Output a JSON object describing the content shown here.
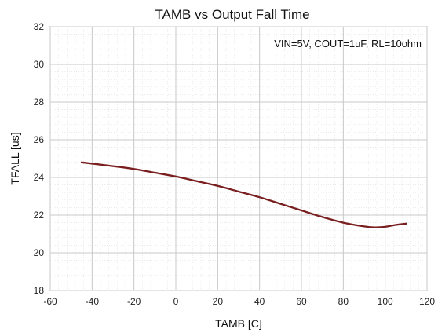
{
  "chart_data": {
    "type": "line",
    "title": "TAMB vs Output Fall Time",
    "xlabel": "TAMB [C]",
    "ylabel": "TFALL [us]",
    "annotation": "VIN=5V, COUT=1uF, RL=10ohm",
    "xlim": [
      -60,
      120
    ],
    "ylim": [
      18,
      32
    ],
    "xticks": [
      -60,
      -40,
      -20,
      0,
      20,
      40,
      60,
      80,
      100,
      120
    ],
    "yticks": [
      18,
      20,
      22,
      24,
      26,
      28,
      30,
      32
    ],
    "grid": true,
    "series_color": "#7a1f1f",
    "series": [
      {
        "x": [
          -45,
          -30,
          -20,
          -10,
          0,
          10,
          20,
          30,
          40,
          50,
          60,
          70,
          80,
          90,
          95,
          100,
          105,
          110
        ],
        "values": [
          24.8,
          24.6,
          24.45,
          24.25,
          24.05,
          23.8,
          23.55,
          23.25,
          22.95,
          22.6,
          22.25,
          21.9,
          21.6,
          21.4,
          21.35,
          21.38,
          21.48,
          21.55
        ]
      }
    ]
  }
}
